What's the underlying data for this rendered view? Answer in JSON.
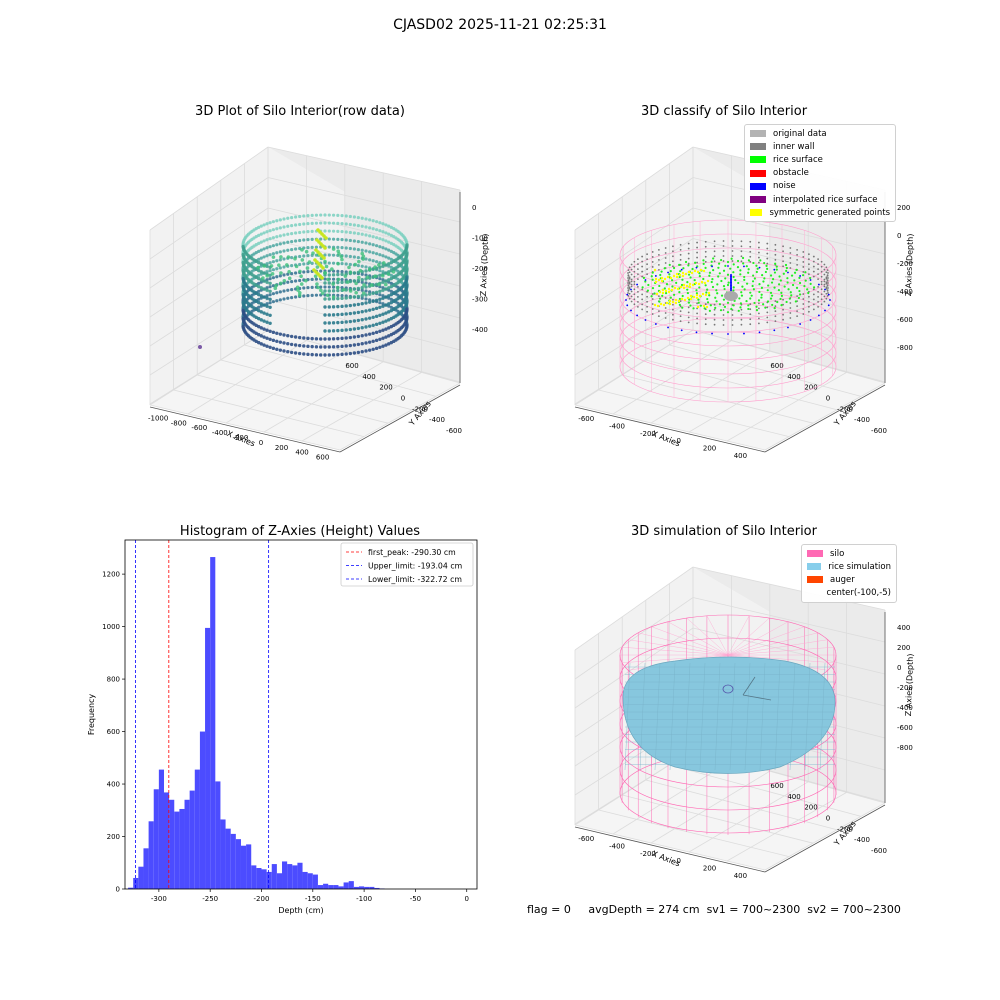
{
  "page": {
    "suptitle": "CJASD02 2025-11-21 02:25:31",
    "footer": {
      "flag": "flag = 0",
      "avg_depth": "avgDepth = 274 cm",
      "sv1": "sv1 = 700~2300",
      "sv2": "sv2 = 700~2300"
    }
  },
  "panels": {
    "raw": {
      "title": "3D Plot of Silo Interior(row data)",
      "xlabel": "X Axies",
      "ylabel": "Y Axies",
      "zlabel": "Z Axies (Depth)",
      "xticks": [
        "-1000",
        "-800",
        "-600",
        "-400",
        "-200",
        "0",
        "200",
        "400",
        "600"
      ],
      "yticks": [
        "-600",
        "-400",
        "-200",
        "0",
        "200",
        "400",
        "600"
      ],
      "zticks": [
        "0",
        "-100",
        "-200",
        "-300",
        "-400"
      ]
    },
    "classify": {
      "title": "3D classify of Silo Interior",
      "xlabel": "X Axies",
      "ylabel": "Y Axies",
      "zlabel": "Z Axies (Depth)",
      "xticks": [
        "-600",
        "-400",
        "-200",
        "0",
        "200",
        "400"
      ],
      "yticks": [
        "-600",
        "-400",
        "-200",
        "0",
        "200",
        "400",
        "600"
      ],
      "zticks": [
        "200",
        "0",
        "-200",
        "-400",
        "-600",
        "-800"
      ],
      "zticks_top": [
        "0",
        "0"
      ],
      "legend": [
        {
          "label": "original data",
          "color": "#b3b3b3"
        },
        {
          "label": "inner wall",
          "color": "#808080"
        },
        {
          "label": "rice surface",
          "color": "#00ff00"
        },
        {
          "label": "obstacle",
          "color": "#ff0000"
        },
        {
          "label": "noise",
          "color": "#0000ff"
        },
        {
          "label": "interpolated rice surface",
          "color": "#800080"
        },
        {
          "label": "symmetric generated points",
          "color": "#ffff00"
        }
      ]
    },
    "simulation": {
      "title": "3D simulation of Silo Interior",
      "xlabel": "X Axies",
      "ylabel": "Y Axies",
      "zlabel": "Z Axies (Depth)",
      "xticks": [
        "-600",
        "-400",
        "-200",
        "0",
        "200",
        "400"
      ],
      "yticks": [
        "-600",
        "-400",
        "-200",
        "0",
        "200",
        "400",
        "600"
      ],
      "zticks": [
        "400",
        "200",
        "0",
        "-200",
        "-400",
        "-600",
        "-800"
      ],
      "legend": [
        {
          "label": "silo",
          "color": "#ff69b4"
        },
        {
          "label": "rice simulation",
          "color": "#87ceeb"
        },
        {
          "label": "auger",
          "color": "#ff4500"
        },
        {
          "label": "center(-100,-5)",
          "color": ""
        }
      ]
    }
  },
  "chart_data": {
    "type": "bar",
    "title": "Histogram of Z-Axies (Height) Values",
    "xlabel": "Depth (cm)",
    "ylabel": "Frequency",
    "xlim": [
      -333,
      10
    ],
    "ylim": [
      0,
      1330
    ],
    "xticks": [
      -300,
      -250,
      -200,
      -150,
      -100,
      -50,
      0
    ],
    "yticks": [
      0,
      200,
      400,
      600,
      800,
      1000,
      1200
    ],
    "bin_start": -330,
    "bin_width": 5,
    "values": [
      5,
      42,
      85,
      155,
      258,
      380,
      455,
      368,
      340,
      295,
      305,
      340,
      375,
      455,
      600,
      995,
      1265,
      410,
      265,
      230,
      210,
      190,
      165,
      170,
      90,
      80,
      75,
      65,
      95,
      60,
      105,
      95,
      90,
      100,
      65,
      60,
      55,
      15,
      20,
      15,
      15,
      10,
      25,
      30,
      8,
      10,
      8,
      8,
      4,
      2
    ],
    "bar_color": "#4c4cff",
    "vlines": [
      {
        "label": "first_peak: -290.30 cm",
        "x": -290.3,
        "color": "#ff0000"
      },
      {
        "label": "Upper_limit: -193.04 cm",
        "x": -193.04,
        "color": "#0000ff"
      },
      {
        "label": "Lower_limit: -322.72 cm",
        "x": -322.72,
        "color": "#0000ff"
      }
    ],
    "legend_position": "upper right"
  }
}
